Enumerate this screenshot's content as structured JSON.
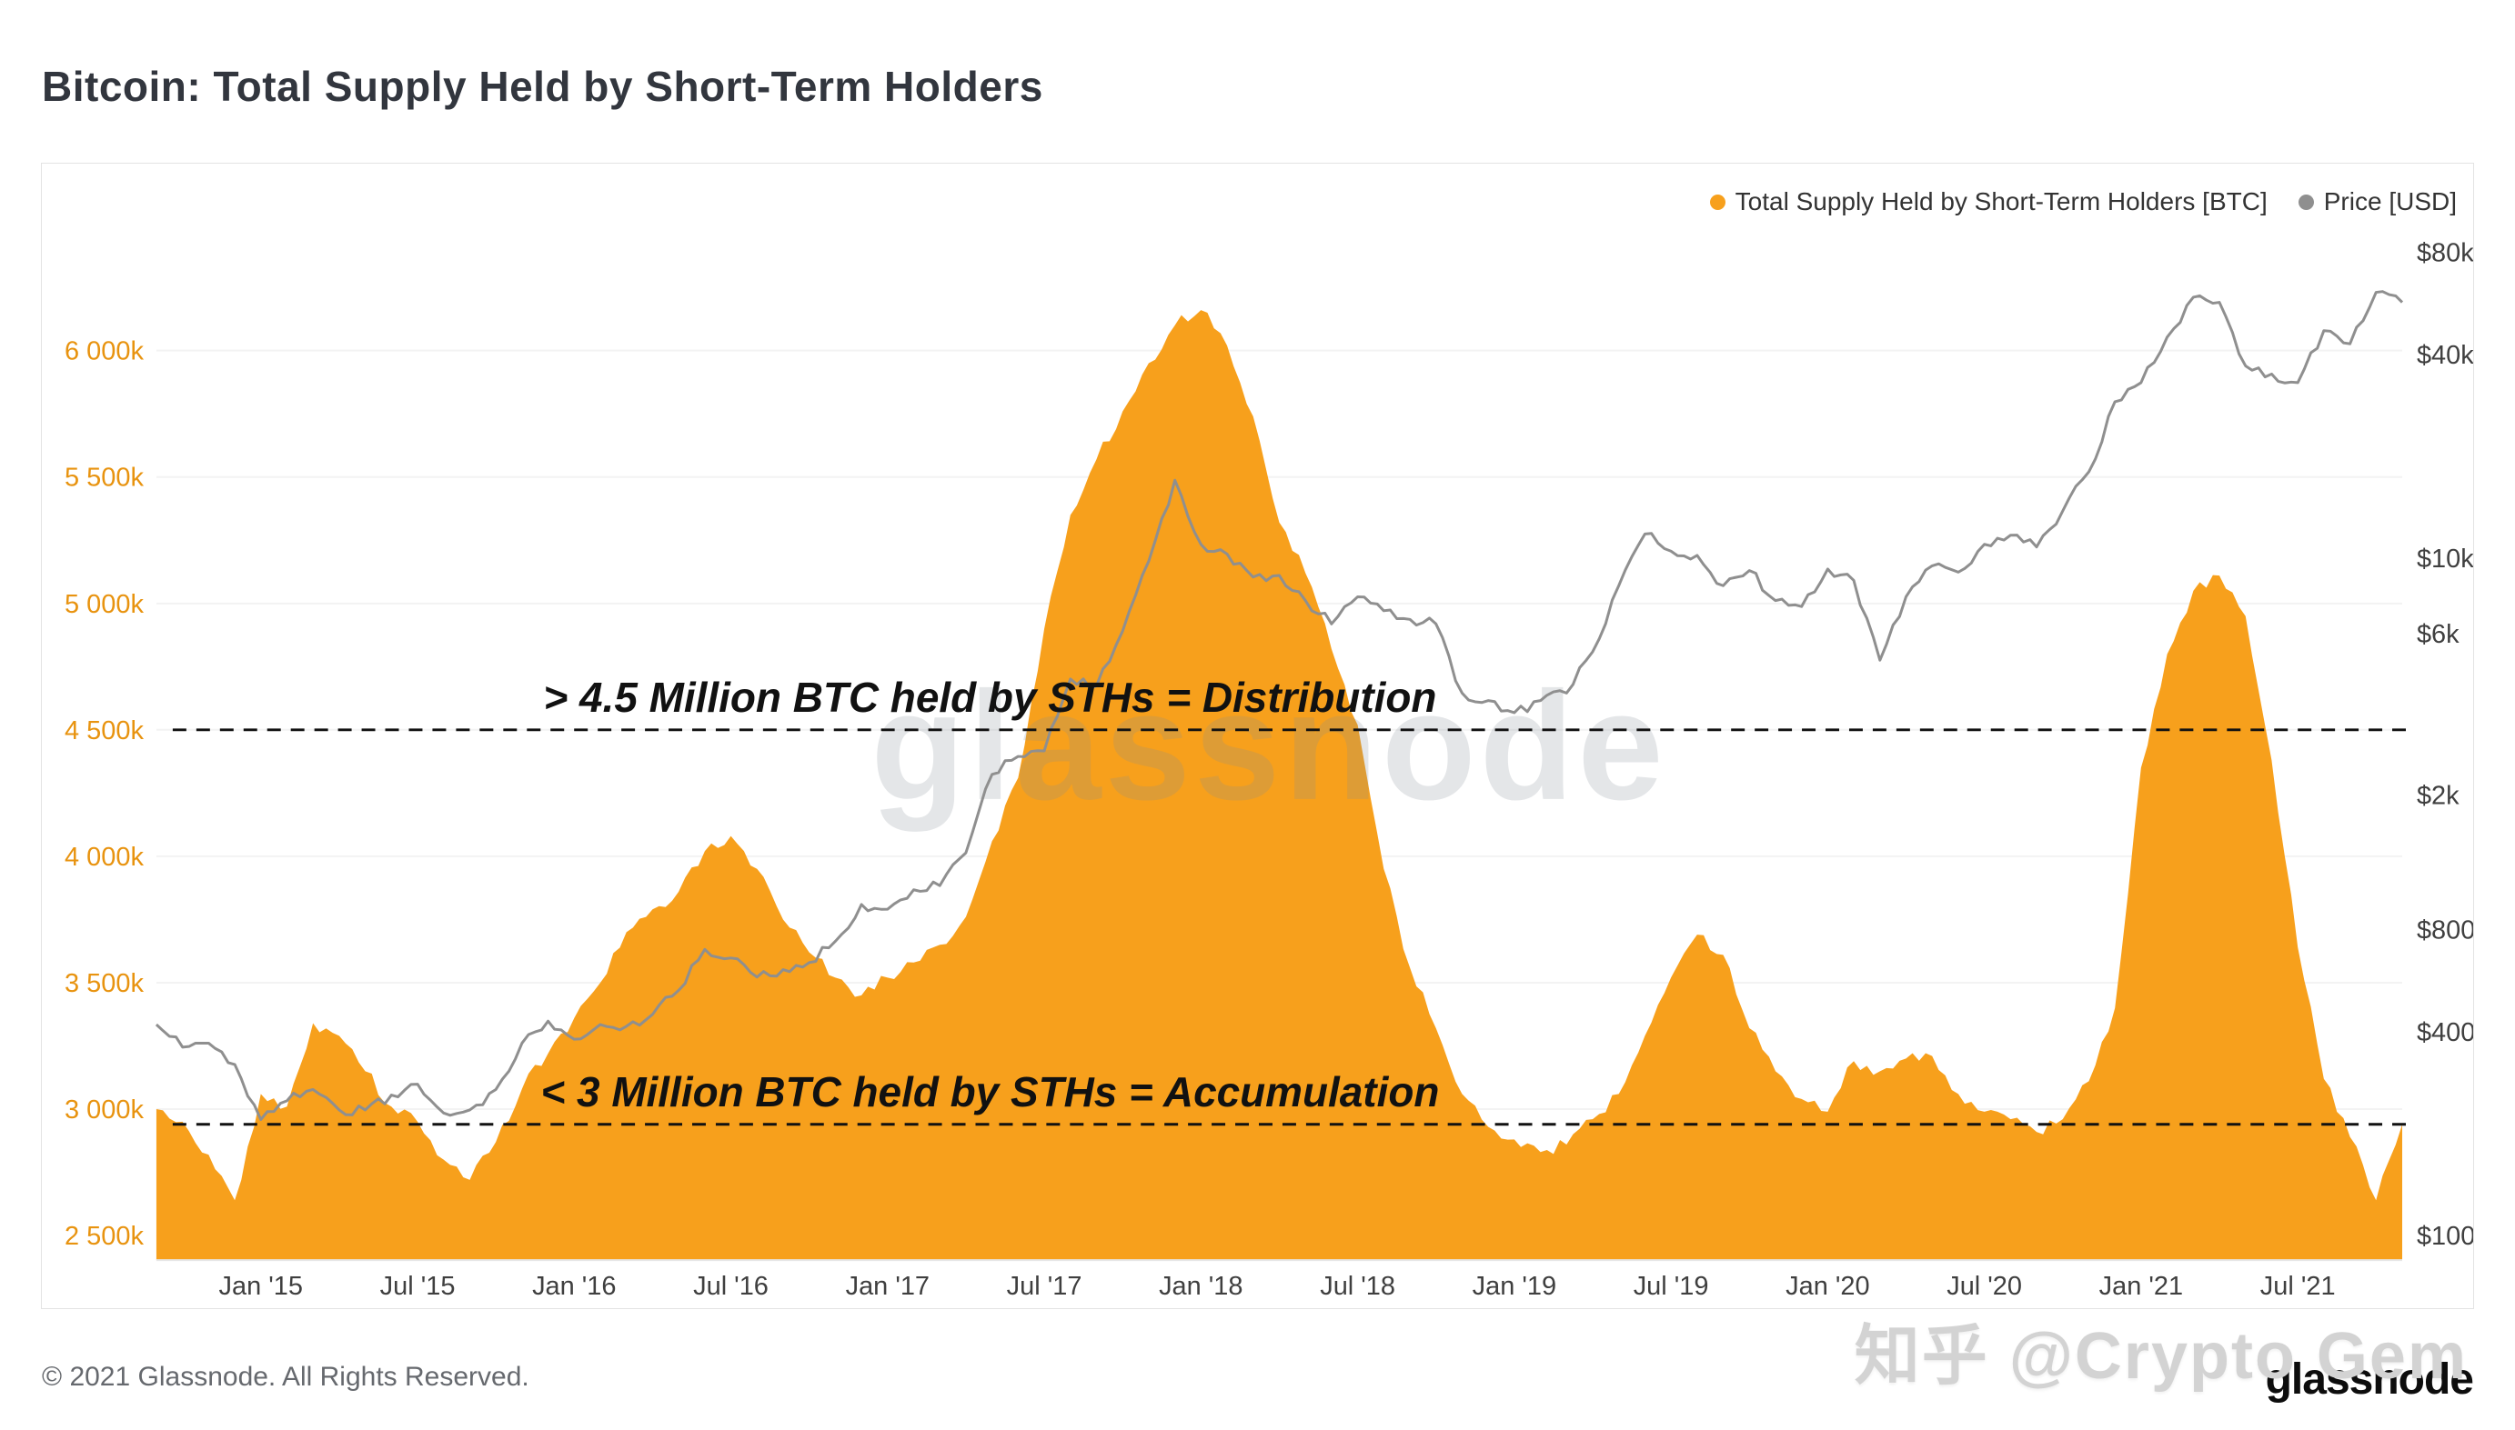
{
  "title": "Bitcoin: Total Supply Held by Short-Term Holders",
  "legend": {
    "supply_label": "Total Supply Held by Short-Term Holders [BTC]",
    "price_label": "Price [USD]"
  },
  "footer": {
    "copyright": "© 2021 Glassnode. All Rights Reserved.",
    "logo": "glassnode"
  },
  "watermarks": {
    "center": "glassnode",
    "bottom_right": "知乎 @Crypto Gem"
  },
  "colors": {
    "supply": "#f7a01c",
    "price": "#8f8f8f",
    "left_axis_text": "#e8930f",
    "right_axis_text": "#3f3f3f",
    "x_axis_text": "#3f3f3f",
    "annotation": "#111111",
    "gridline": "#f3f3f3"
  },
  "chart_data": {
    "type": "area",
    "title": "Bitcoin: Total Supply Held by Short-Term Holders",
    "legend_position": "top-right",
    "grid": "faint-horizontal",
    "x_ticks": [
      {
        "label": "Jan '15",
        "t": "2015-01"
      },
      {
        "label": "Jul '15",
        "t": "2015-07"
      },
      {
        "label": "Jan '16",
        "t": "2016-01"
      },
      {
        "label": "Jul '16",
        "t": "2016-07"
      },
      {
        "label": "Jan '17",
        "t": "2017-01"
      },
      {
        "label": "Jul '17",
        "t": "2017-07"
      },
      {
        "label": "Jan '18",
        "t": "2018-01"
      },
      {
        "label": "Jul '18",
        "t": "2018-07"
      },
      {
        "label": "Jan '19",
        "t": "2019-01"
      },
      {
        "label": "Jul '19",
        "t": "2019-07"
      },
      {
        "label": "Jan '20",
        "t": "2020-01"
      },
      {
        "label": "Jul '20",
        "t": "2020-07"
      },
      {
        "label": "Jan '21",
        "t": "2021-01"
      },
      {
        "label": "Jul '21",
        "t": "2021-07"
      }
    ],
    "left_axis": {
      "scale": "linear",
      "unit": "thousand BTC",
      "range": [
        2400,
        6420
      ],
      "ticks": [
        {
          "label": "6 000k",
          "value": 6000
        },
        {
          "label": "5 500k",
          "value": 5500
        },
        {
          "label": "5 000k",
          "value": 5000
        },
        {
          "label": "4 500k",
          "value": 4500
        },
        {
          "label": "4 000k",
          "value": 4000
        },
        {
          "label": "3 500k",
          "value": 3500
        },
        {
          "label": "3 000k",
          "value": 3000
        },
        {
          "label": "2 500k",
          "value": 2500
        }
      ]
    },
    "right_axis": {
      "scale": "log",
      "unit": "USD",
      "range": [
        85,
        124000
      ],
      "ticks": [
        {
          "label": "$80k",
          "value": 80000
        },
        {
          "label": "$40k",
          "value": 40000
        },
        {
          "label": "$10k",
          "value": 10000
        },
        {
          "label": "$6k",
          "value": 6000
        },
        {
          "label": "$2k",
          "value": 2000
        },
        {
          "label": "$800",
          "value": 800
        },
        {
          "label": "$400",
          "value": 400
        },
        {
          "label": "$100",
          "value": 100
        }
      ]
    },
    "annotations": [
      {
        "id": "distribution-threshold",
        "value": 4500,
        "label": "> 4.5 Million BTC held by STHs = Distribution"
      },
      {
        "id": "accumulation-threshold",
        "value": 2940,
        "label": "< 3 Million BTC held by STHs = Accumulation"
      }
    ],
    "series": [
      {
        "name": "Total Supply Held by Short-Term Holders [BTC]",
        "type": "area",
        "axis": "left",
        "unit": "thousand BTC",
        "color": "#f7a01c",
        "points": [
          [
            "2014-09",
            3000
          ],
          [
            "2014-10",
            2950
          ],
          [
            "2014-11",
            2820
          ],
          [
            "2014-12",
            2640
          ],
          [
            "2015-01",
            3060
          ],
          [
            "2015-02",
            3010
          ],
          [
            "2015-03",
            3340
          ],
          [
            "2015-04",
            3290
          ],
          [
            "2015-05",
            3150
          ],
          [
            "2015-06",
            3010
          ],
          [
            "2015-07",
            2950
          ],
          [
            "2015-08",
            2800
          ],
          [
            "2015-09",
            2720
          ],
          [
            "2015-10",
            2870
          ],
          [
            "2015-11",
            3080
          ],
          [
            "2015-12",
            3220
          ],
          [
            "2016-01",
            3360
          ],
          [
            "2016-02",
            3500
          ],
          [
            "2016-03",
            3700
          ],
          [
            "2016-04",
            3790
          ],
          [
            "2016-05",
            3860
          ],
          [
            "2016-06",
            4020
          ],
          [
            "2016-07",
            4080
          ],
          [
            "2016-08",
            3950
          ],
          [
            "2016-09",
            3750
          ],
          [
            "2016-10",
            3620
          ],
          [
            "2016-11",
            3520
          ],
          [
            "2016-12",
            3450
          ],
          [
            "2017-01",
            3520
          ],
          [
            "2017-02",
            3580
          ],
          [
            "2017-03",
            3650
          ],
          [
            "2017-04",
            3760
          ],
          [
            "2017-05",
            4060
          ],
          [
            "2017-06",
            4310
          ],
          [
            "2017-07",
            4900
          ],
          [
            "2017-08",
            5350
          ],
          [
            "2017-09",
            5570
          ],
          [
            "2017-10",
            5760
          ],
          [
            "2017-11",
            5950
          ],
          [
            "2017-12",
            6100
          ],
          [
            "2018-01",
            6160
          ],
          [
            "2018-02",
            6020
          ],
          [
            "2018-03",
            5740
          ],
          [
            "2018-04",
            5320
          ],
          [
            "2018-05",
            5120
          ],
          [
            "2018-06",
            4820
          ],
          [
            "2018-07",
            4520
          ],
          [
            "2018-08",
            3950
          ],
          [
            "2018-09",
            3560
          ],
          [
            "2018-10",
            3320
          ],
          [
            "2018-11",
            3060
          ],
          [
            "2018-12",
            2930
          ],
          [
            "2019-01",
            2880
          ],
          [
            "2019-02",
            2830
          ],
          [
            "2019-03",
            2860
          ],
          [
            "2019-04",
            2960
          ],
          [
            "2019-05",
            3060
          ],
          [
            "2019-06",
            3290
          ],
          [
            "2019-07",
            3520
          ],
          [
            "2019-08",
            3690
          ],
          [
            "2019-09",
            3610
          ],
          [
            "2019-10",
            3320
          ],
          [
            "2019-11",
            3150
          ],
          [
            "2019-12",
            3040
          ],
          [
            "2020-01",
            2990
          ],
          [
            "2020-02",
            3190
          ],
          [
            "2020-03",
            3150
          ],
          [
            "2020-04",
            3200
          ],
          [
            "2020-05",
            3210
          ],
          [
            "2020-06",
            3060
          ],
          [
            "2020-07",
            2990
          ],
          [
            "2020-08",
            2960
          ],
          [
            "2020-09",
            2910
          ],
          [
            "2020-10",
            2960
          ],
          [
            "2020-11",
            3110
          ],
          [
            "2020-12",
            3400
          ],
          [
            "2021-01",
            4350
          ],
          [
            "2021-02",
            4800
          ],
          [
            "2021-03",
            5050
          ],
          [
            "2021-04",
            5110
          ],
          [
            "2021-05",
            4950
          ],
          [
            "2021-06",
            4380
          ],
          [
            "2021-07",
            3640
          ],
          [
            "2021-08",
            3120
          ],
          [
            "2021-09",
            2890
          ],
          [
            "2021-10",
            2640
          ],
          [
            "2021-11",
            2940
          ]
        ]
      },
      {
        "name": "Price [USD]",
        "type": "line",
        "axis": "right",
        "unit": "USD",
        "color": "#8f8f8f",
        "points": [
          [
            "2014-09",
            420
          ],
          [
            "2014-10",
            360
          ],
          [
            "2014-11",
            370
          ],
          [
            "2014-12",
            320
          ],
          [
            "2015-01",
            220
          ],
          [
            "2015-02",
            250
          ],
          [
            "2015-03",
            270
          ],
          [
            "2015-04",
            235
          ],
          [
            "2015-05",
            235
          ],
          [
            "2015-06",
            260
          ],
          [
            "2015-07",
            280
          ],
          [
            "2015-08",
            230
          ],
          [
            "2015-09",
            235
          ],
          [
            "2015-10",
            270
          ],
          [
            "2015-11",
            370
          ],
          [
            "2015-12",
            430
          ],
          [
            "2016-01",
            380
          ],
          [
            "2016-02",
            420
          ],
          [
            "2016-03",
            415
          ],
          [
            "2016-04",
            450
          ],
          [
            "2016-05",
            530
          ],
          [
            "2016-06",
            700
          ],
          [
            "2016-07",
            660
          ],
          [
            "2016-08",
            580
          ],
          [
            "2016-09",
            610
          ],
          [
            "2016-10",
            640
          ],
          [
            "2016-11",
            740
          ],
          [
            "2016-12",
            950
          ],
          [
            "2017-01",
            920
          ],
          [
            "2017-02",
            1050
          ],
          [
            "2017-03",
            1080
          ],
          [
            "2017-04",
            1350
          ],
          [
            "2017-05",
            2300
          ],
          [
            "2017-06",
            2600
          ],
          [
            "2017-07",
            2700
          ],
          [
            "2017-08",
            4400
          ],
          [
            "2017-09",
            4200
          ],
          [
            "2017-10",
            6100
          ],
          [
            "2017-11",
            9800
          ],
          [
            "2017-12",
            17000
          ],
          [
            "2018-01",
            11000
          ],
          [
            "2018-02",
            10300
          ],
          [
            "2018-03",
            8800
          ],
          [
            "2018-04",
            8900
          ],
          [
            "2018-05",
            7500
          ],
          [
            "2018-06",
            6400
          ],
          [
            "2018-07",
            7700
          ],
          [
            "2018-08",
            7000
          ],
          [
            "2018-09",
            6600
          ],
          [
            "2018-10",
            6400
          ],
          [
            "2018-11",
            4000
          ],
          [
            "2018-12",
            3800
          ],
          [
            "2019-01",
            3500
          ],
          [
            "2019-02",
            3800
          ],
          [
            "2019-03",
            4000
          ],
          [
            "2019-04",
            5300
          ],
          [
            "2019-05",
            8300
          ],
          [
            "2019-06",
            11800
          ],
          [
            "2019-07",
            10500
          ],
          [
            "2019-08",
            10200
          ],
          [
            "2019-09",
            8300
          ],
          [
            "2019-10",
            9200
          ],
          [
            "2019-11",
            7500
          ],
          [
            "2019-12",
            7200
          ],
          [
            "2020-01",
            9300
          ],
          [
            "2020-02",
            8600
          ],
          [
            "2020-03",
            5000
          ],
          [
            "2020-04",
            7700
          ],
          [
            "2020-05",
            9500
          ],
          [
            "2020-06",
            9100
          ],
          [
            "2020-07",
            11000
          ],
          [
            "2020-08",
            11700
          ],
          [
            "2020-09",
            10800
          ],
          [
            "2020-10",
            13800
          ],
          [
            "2020-11",
            18000
          ],
          [
            "2020-12",
            29000
          ],
          [
            "2021-01",
            33000
          ],
          [
            "2021-02",
            45000
          ],
          [
            "2021-03",
            59000
          ],
          [
            "2021-04",
            57000
          ],
          [
            "2021-05",
            37000
          ],
          [
            "2021-06",
            35000
          ],
          [
            "2021-07",
            33000
          ],
          [
            "2021-08",
            47000
          ],
          [
            "2021-09",
            43000
          ],
          [
            "2021-10",
            61000
          ],
          [
            "2021-11",
            57000
          ]
        ]
      }
    ]
  }
}
